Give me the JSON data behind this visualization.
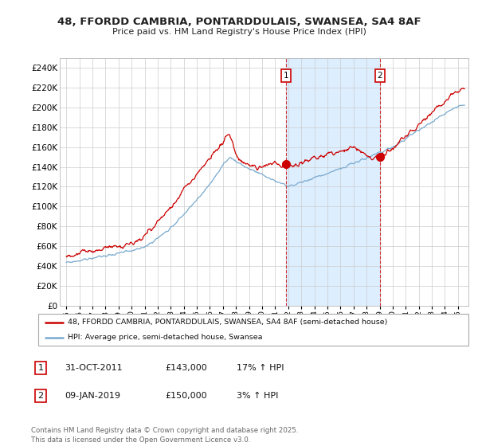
{
  "title_line1": "48, FFORDD CAMBRIA, PONTARDDULAIS, SWANSEA, SA4 8AF",
  "title_line2": "Price paid vs. HM Land Registry's House Price Index (HPI)",
  "red_label": "48, FFORDD CAMBRIA, PONTARDDULAIS, SWANSEA, SA4 8AF (semi-detached house)",
  "blue_label": "HPI: Average price, semi-detached house, Swansea",
  "footer": "Contains HM Land Registry data © Crown copyright and database right 2025.\nThis data is licensed under the Open Government Licence v3.0.",
  "annotation1": {
    "num": "1",
    "date": "31-OCT-2011",
    "price": "£143,000",
    "hpi": "17% ↑ HPI",
    "x_year": 2011.83,
    "y_val": 143000
  },
  "annotation2": {
    "num": "2",
    "date": "09-JAN-2019",
    "price": "£150,000",
    "hpi": "3% ↑ HPI",
    "x_year": 2019.03,
    "y_val": 150000
  },
  "ylim": [
    0,
    250000
  ],
  "yticks": [
    0,
    20000,
    40000,
    60000,
    80000,
    100000,
    120000,
    140000,
    160000,
    180000,
    200000,
    220000,
    240000
  ],
  "red_color": "#cc0000",
  "blue_color": "#7aaace",
  "shade_color": "#ddeeff",
  "background_color": "#ffffff",
  "grid_color": "#cccccc",
  "xlim_left": 1994.5,
  "xlim_right": 2025.8
}
